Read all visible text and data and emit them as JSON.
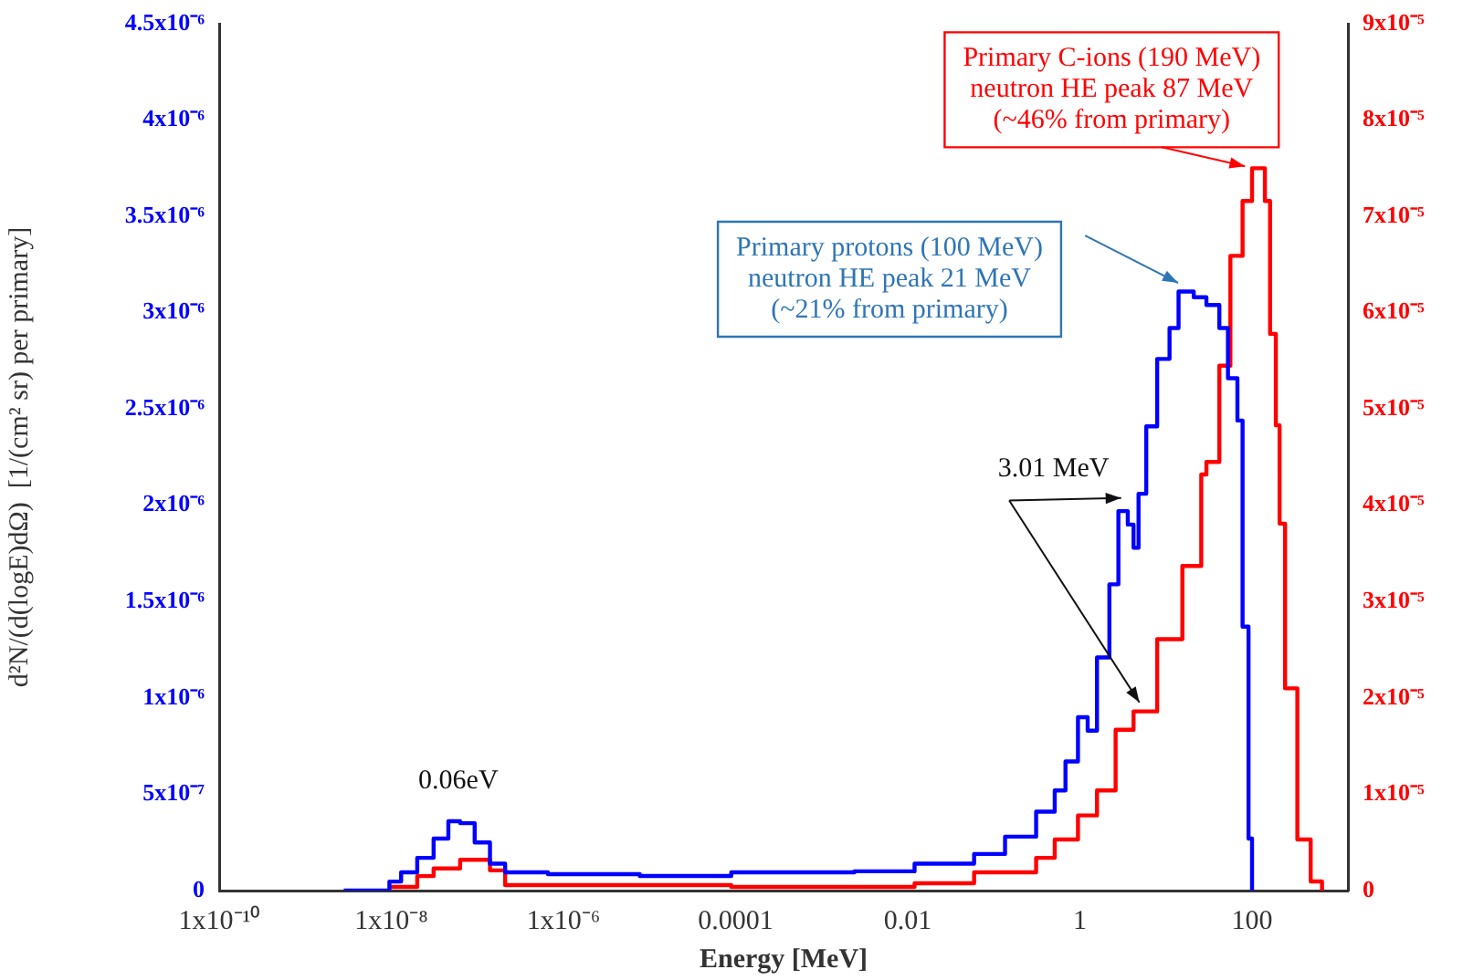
{
  "chart_data": {
    "type": "step",
    "xlabel": "Energy [MeV]",
    "ylabel": "d²N/(d(logE)dΩ)  [1/(cm² sr) per primary]",
    "log": "x",
    "grid": false,
    "legend": false,
    "marker": "none",
    "line_style": "solid",
    "xlim": [
      1e-10,
      1300
    ],
    "xticks": [
      {
        "value": 1e-10,
        "label": "1x10⁻¹⁰"
      },
      {
        "value": 1e-08,
        "label": "1x10⁻⁸"
      },
      {
        "value": 1e-06,
        "label": "1x10⁻⁶"
      },
      0.0001,
      0.01,
      1,
      100
    ],
    "ylim": [
      0,
      4.5e-06
    ],
    "yticks": [
      0,
      {
        "value": 5e-07,
        "label": "5x10⁻⁷"
      },
      {
        "value": 1e-06,
        "label": "1x10⁻⁶"
      },
      {
        "value": 1.5e-06,
        "label": "1.5x10⁻⁶"
      },
      {
        "value": 2e-06,
        "label": "2x10⁻⁶"
      },
      {
        "value": 2.5e-06,
        "label": "2.5x10⁻⁶"
      },
      {
        "value": 3e-06,
        "label": "3x10⁻⁶"
      },
      {
        "value": 3.5e-06,
        "label": "3.5x10⁻⁶"
      },
      {
        "value": 4e-06,
        "label": "4x10⁻⁶"
      },
      {
        "value": 4.5e-06,
        "label": "4.5x10⁻⁶"
      }
    ],
    "y2lim": [
      0,
      9e-05
    ],
    "y2ticks": [
      0,
      {
        "value": 1e-05,
        "label": "1x10⁻⁵"
      },
      {
        "value": 2e-05,
        "label": "2x10⁻⁵"
      },
      {
        "value": 3e-05,
        "label": "3x10⁻⁵"
      },
      {
        "value": 4e-05,
        "label": "4x10⁻⁵"
      },
      {
        "value": 5e-05,
        "label": "5x10⁻⁵"
      },
      {
        "value": 6e-05,
        "label": "6x10⁻⁵"
      },
      {
        "value": 7e-05,
        "label": "7x10⁻⁵"
      },
      {
        "value": 8e-05,
        "label": "8x10⁻⁵"
      },
      {
        "value": 9e-05,
        "label": "9x10⁻⁵"
      }
    ],
    "series": [
      {
        "color": "#0000ff",
        "axis": "y",
        "x": [
          2.8e-09,
          9.5e-09,
          1.3e-08,
          2e-08,
          3.1e-08,
          4.6e-08,
          6.3e-08,
          9.3e-08,
          1.4e-07,
          2.1e-07,
          6.6e-07,
          7.7e-06,
          8.9e-05,
          0.0024,
          0.012,
          0.059,
          0.135,
          0.31,
          0.51,
          0.68,
          0.95,
          1.23,
          1.58,
          2.2,
          2.8,
          3.6,
          4.2,
          4.8,
          5.9,
          7.9,
          11,
          14,
          21,
          29.5,
          41.7,
          52.5,
          67.6,
          77.6,
          91,
          100
        ],
        "values": [
          0,
          4.7e-08,
          9.5e-08,
          1.7e-07,
          2.7e-07,
          3.6e-07,
          3.5e-07,
          2.5e-07,
          1.4e-07,
          9.5e-08,
          8.5e-08,
          7.6e-08,
          9.5e-08,
          1e-07,
          1.4e-07,
          1.9e-07,
          2.8e-07,
          4.1e-07,
          5.2e-07,
          6.7e-07,
          9e-07,
          8.3e-07,
          1.21e-06,
          1.59e-06,
          1.97e-06,
          1.9e-06,
          1.78e-06,
          2.06e-06,
          2.41e-06,
          2.76e-06,
          2.92e-06,
          3.11e-06,
          3.08e-06,
          3.04e-06,
          2.92e-06,
          2.66e-06,
          2.44e-06,
          1.37e-06,
          2.7e-07,
          0
        ]
      },
      {
        "color": "#ff0000",
        "axis": "y2",
        "x": [
          9.5e-09,
          2e-08,
          3.1e-08,
          6.3e-08,
          1.4e-07,
          2.1e-07,
          8.9e-05,
          0.012,
          0.059,
          0.31,
          0.51,
          0.95,
          1.58,
          2.6,
          4.2,
          7.9,
          15.5,
          25.7,
          29.5,
          41.7,
          56,
          77.6,
          100,
          141,
          162,
          189,
          209,
          242,
          336,
          480,
          650
        ],
        "values": [
          3.8e-07,
          1.5e-06,
          2.3e-06,
          3.2e-06,
          2.1e-06,
          5.7e-07,
          3.8e-07,
          7.6e-07,
          1.9e-06,
          3.4e-06,
          5.3e-06,
          7.8e-06,
          1.04e-05,
          1.67e-05,
          1.86e-05,
          2.61e-05,
          3.37e-05,
          4.32e-05,
          4.45e-05,
          5.45e-05,
          6.59e-05,
          7.16e-05,
          7.5e-05,
          7.16e-05,
          5.78e-05,
          4.83e-05,
          3.81e-05,
          2.1e-05,
          5.3e-06,
          9.5e-07,
          0
        ]
      }
    ],
    "annotations": [
      {
        "text": "0.06eV",
        "x": 6e-08,
        "y": 3.6e-07
      },
      {
        "text": "3.01 MeV",
        "x": 3.01,
        "y": 2e-06
      },
      "Primary protons (100 MeV)\nneutron HE peak 21 MeV\n(~21% from primary)",
      {
        "text": "Primary C-ions (190 MeV)\nneutron HE peak 87 MeV\n(~46% from primary)",
        "x": 87,
        "y": 3.75e-06
      }
    ]
  }
}
